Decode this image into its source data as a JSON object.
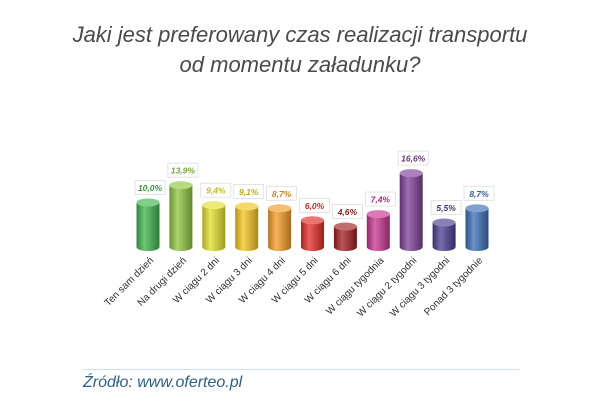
{
  "title": {
    "line1": "Jaki jest preferowany czas realizacji transportu",
    "line2": "od momentu załadunku?"
  },
  "source": "Źródło: www.oferteo.pl",
  "chart_data": {
    "type": "bar",
    "title": "Jaki jest preferowany czas realizacji transportu od momentu załadunku?",
    "categories": [
      "Ten sam dzień",
      "Na drugi dzień",
      "W ciągu 2 dni",
      "W ciągu 3 dni",
      "W ciągu 4 dni",
      "W ciągu 5 dni",
      "W ciągu 6 dni",
      "W ciągu tygodnia",
      "W ciągu 2 tygodni",
      "W ciągu 3 tygodni",
      "Ponad 3 tygodnie"
    ],
    "values": [
      10.0,
      13.9,
      9.4,
      9.1,
      8.7,
      6.0,
      4.6,
      7.4,
      16.6,
      5.5,
      8.7
    ],
    "labels": [
      "10,0%",
      "13,9%",
      "9,4%",
      "9,1%",
      "8,7%",
      "6,0%",
      "4,6%",
      "7,4%",
      "16,6%",
      "5,5%",
      "8,7%"
    ],
    "colors": [
      "#3db34a",
      "#8cc63f",
      "#e2df2a",
      "#f3c21c",
      "#f39a25",
      "#e42b25",
      "#a01d1f",
      "#c8338f",
      "#7d3f96",
      "#4a3d8f",
      "#3a6eb5"
    ],
    "xlabel": "",
    "ylabel": "",
    "ylim": [
      0,
      18
    ]
  }
}
